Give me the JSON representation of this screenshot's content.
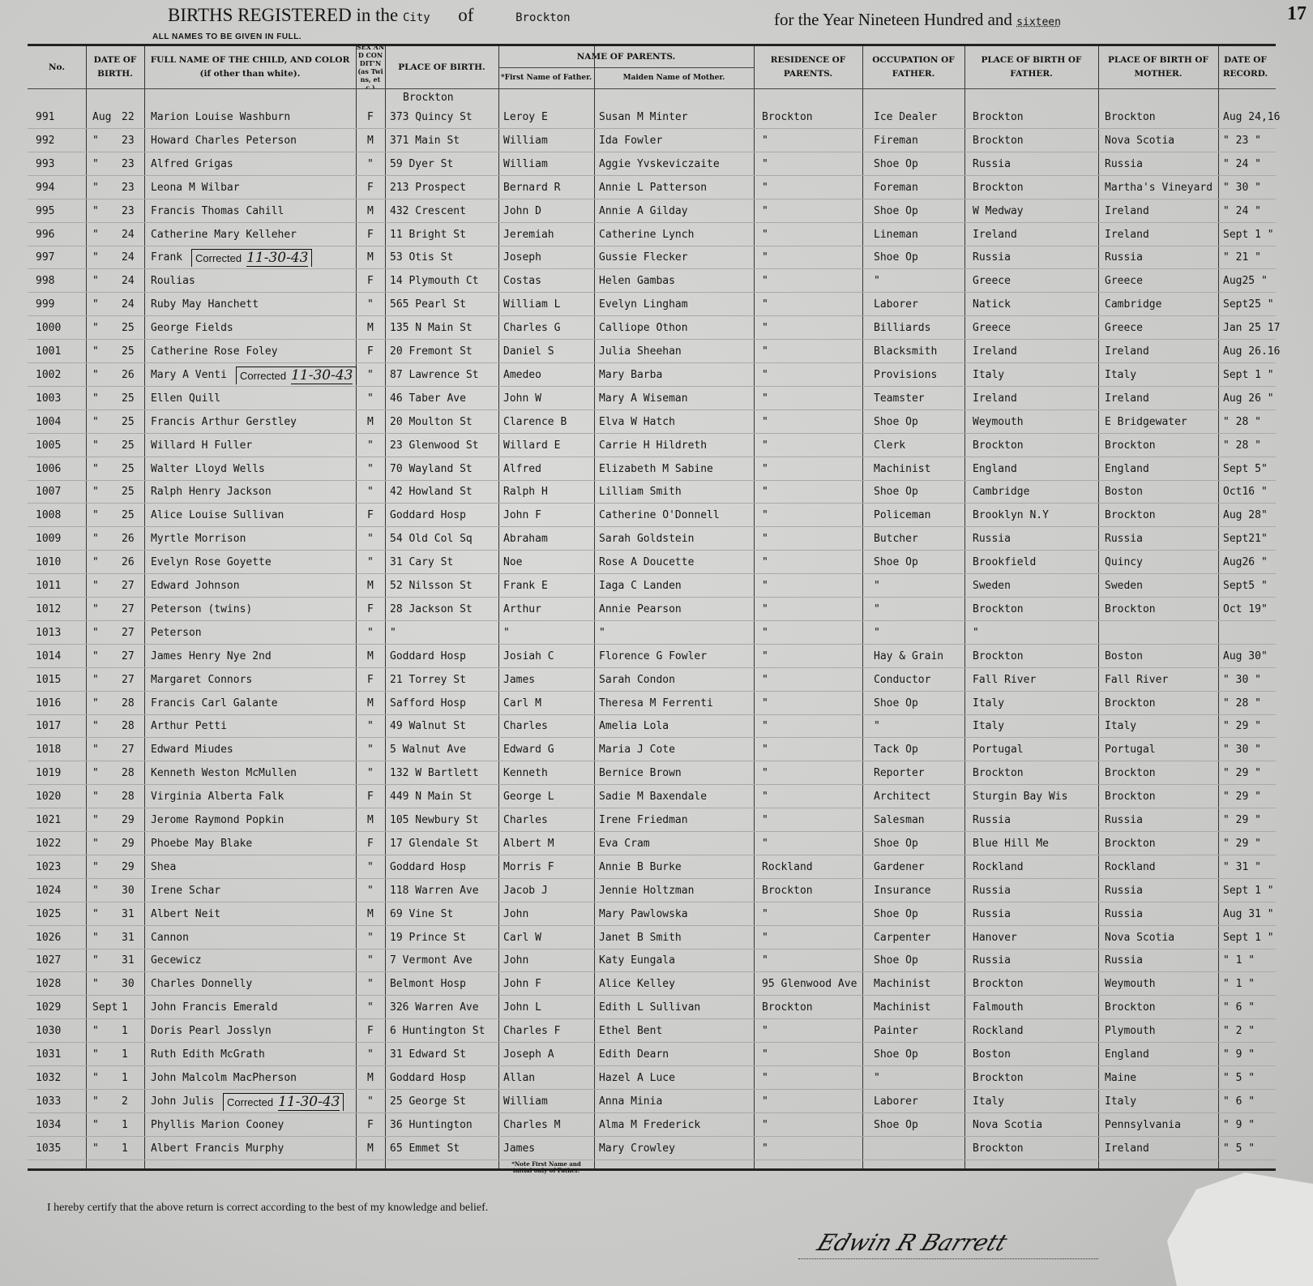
{
  "header": {
    "title": "BIRTHS REGISTERED",
    "in_the": "in the",
    "city_label": "City",
    "of": "of",
    "city": "Brockton",
    "subtitle": "ALL NAMES TO BE GIVEN IN FULL.",
    "year_prefix": "for the Year Nineteen Hundred and",
    "year": "sixteen",
    "page_number": "17"
  },
  "columns": [
    "No.",
    "DATE OF BIRTH.",
    "FULL NAME OF THE CHILD, AND COLOR (if other than white).",
    "SEX AND CONDIT'N (as Twins, etc.)",
    "PLACE OF BIRTH.",
    "*First Name of Father.",
    "Maiden Name of Mother.",
    "RESIDENCE OF PARENTS.",
    "OCCUPATION OF FATHER.",
    "PLACE OF BIRTH OF FATHER.",
    "PLACE OF BIRTH OF MOTHER.",
    "DATE OF RECORD."
  ],
  "parents_group": "NAME OF PARENTS.",
  "first_place_city": "Brockton",
  "rows": [
    [
      "991",
      "Aug",
      "22",
      "Marion Louise Washburn",
      "F",
      "373 Quincy St",
      "Leroy E",
      "Susan M Minter",
      "Brockton",
      "Ice Dealer",
      "Brockton",
      "Brockton",
      "Aug 24,16"
    ],
    [
      "992",
      "\"",
      "23",
      "Howard Charles Peterson",
      "M",
      "371 Main St",
      "William",
      "Ida Fowler",
      "\"",
      "Fireman",
      "Brockton",
      "Nova Scotia",
      "\" 23 \""
    ],
    [
      "993",
      "\"",
      "23",
      "Alfred Grigas",
      "\"",
      "59 Dyer St",
      "William",
      "Aggie Yvskeviczaite",
      "\"",
      "Shoe Op",
      "Russia",
      "Russia",
      "\" 24 \""
    ],
    [
      "994",
      "\"",
      "23",
      "Leona M Wilbar",
      "F",
      "213 Prospect",
      "Bernard R",
      "Annie L Patterson",
      "\"",
      "Foreman",
      "Brockton",
      "Martha's Vineyard",
      "\" 30 \""
    ],
    [
      "995",
      "\"",
      "23",
      "Francis Thomas Cahill",
      "M",
      "432 Crescent",
      "John D",
      "Annie A Gilday",
      "\"",
      "Shoe Op",
      "W Medway",
      "Ireland",
      "\" 24 \""
    ],
    [
      "996",
      "\"",
      "24",
      "Catherine Mary Kelleher",
      "F",
      "11 Bright St",
      "Jeremiah",
      "Catherine Lynch",
      "\"",
      "Lineman",
      "Ireland",
      "Ireland",
      "Sept 1 \""
    ],
    [
      "997",
      "\"",
      "24",
      "Frank",
      "M",
      "53 Otis St",
      "Joseph",
      "Gussie Flecker",
      "\"",
      "Shoe Op",
      "Russia",
      "Russia",
      "\" 21 \""
    ],
    [
      "998",
      "\"",
      "24",
      "Roulias",
      "F",
      "14 Plymouth Ct",
      "Costas",
      "Helen Gambas",
      "\"",
      "\"",
      "Greece",
      "Greece",
      "Aug25 \""
    ],
    [
      "999",
      "\"",
      "24",
      "Ruby May Hanchett",
      "\"",
      "565 Pearl St",
      "William L",
      "Evelyn Lingham",
      "\"",
      "Laborer",
      "Natick",
      "Cambridge",
      "Sept25 \""
    ],
    [
      "1000",
      "\"",
      "25",
      "George Fields",
      "M",
      "135 N Main St",
      "Charles G",
      "Calliope Othon",
      "\"",
      "Billiards",
      "Greece",
      "Greece",
      "Jan 25 17"
    ],
    [
      "1001",
      "\"",
      "25",
      "Catherine Rose Foley",
      "F",
      "20 Fremont St",
      "Daniel S",
      "Julia Sheehan",
      "\"",
      "Blacksmith",
      "Ireland",
      "Ireland",
      "Aug 26.16"
    ],
    [
      "1002",
      "\"",
      "26",
      "Mary A Venti",
      "\"",
      "87 Lawrence St",
      "Amedeo",
      "Mary Barba",
      "\"",
      "Provisions",
      "Italy",
      "Italy",
      "Sept 1 \""
    ],
    [
      "1003",
      "\"",
      "25",
      "Ellen Quill",
      "\"",
      "46 Taber Ave",
      "John W",
      "Mary A Wiseman",
      "\"",
      "Teamster",
      "Ireland",
      "Ireland",
      "Aug 26 \""
    ],
    [
      "1004",
      "\"",
      "25",
      "Francis Arthur Gerstley",
      "M",
      "20 Moulton St",
      "Clarence B",
      "Elva W Hatch",
      "\"",
      "Shoe Op",
      "Weymouth",
      "E Bridgewater",
      "\" 28 \""
    ],
    [
      "1005",
      "\"",
      "25",
      "Willard H Fuller",
      "\"",
      "23 Glenwood St",
      "Willard E",
      "Carrie H Hildreth",
      "\"",
      "Clerk",
      "Brockton",
      "Brockton",
      "\" 28 \""
    ],
    [
      "1006",
      "\"",
      "25",
      "Walter Lloyd Wells",
      "\"",
      "70 Wayland St",
      "Alfred",
      "Elizabeth M Sabine",
      "\"",
      "Machinist",
      "England",
      "England",
      "Sept 5\""
    ],
    [
      "1007",
      "\"",
      "25",
      "Ralph Henry Jackson",
      "\"",
      "42 Howland St",
      "Ralph H",
      "Lilliam Smith",
      "\"",
      "Shoe Op",
      "Cambridge",
      "Boston",
      "Oct16 \""
    ],
    [
      "1008",
      "\"",
      "25",
      "Alice Louise Sullivan",
      "F",
      "Goddard Hosp",
      "John F",
      "Catherine O'Donnell",
      "\"",
      "Policeman",
      "Brooklyn N.Y",
      "Brockton",
      "Aug 28\""
    ],
    [
      "1009",
      "\"",
      "26",
      "Myrtle Morrison",
      "\"",
      "54 Old Col Sq",
      "Abraham",
      "Sarah Goldstein",
      "\"",
      "Butcher",
      "Russia",
      "Russia",
      "Sept21\""
    ],
    [
      "1010",
      "\"",
      "26",
      "Evelyn Rose Goyette",
      "\"",
      "31 Cary St",
      "Noe",
      "Rose A Doucette",
      "\"",
      "Shoe Op",
      "Brookfield",
      "Quincy",
      "Aug26 \""
    ],
    [
      "1011",
      "\"",
      "27",
      "Edward Johnson",
      "M",
      "52 Nilsson St",
      "Frank E",
      "Iaga C Landen",
      "\"",
      "\"",
      "Sweden",
      "Sweden",
      "Sept5 \""
    ],
    [
      "1012",
      "\"",
      "27",
      "Peterson        (twins)",
      "F",
      "28 Jackson St",
      "Arthur",
      "Annie Pearson",
      "\"",
      "\"",
      "Brockton",
      "Brockton",
      "Oct 19\""
    ],
    [
      "1013",
      "\"",
      "27",
      "Peterson",
      "\"",
      "\"",
      "\"",
      "\"",
      "\"",
      "\"",
      "\"",
      "",
      ""
    ],
    [
      "1014",
      "\"",
      "27",
      "James Henry Nye 2nd",
      "M",
      "Goddard Hosp",
      "Josiah C",
      "Florence G Fowler",
      "\"",
      "Hay & Grain",
      "Brockton",
      "Boston",
      "Aug 30\""
    ],
    [
      "1015",
      "\"",
      "27",
      "Margaret Connors",
      "F",
      "21 Torrey St",
      "James",
      "Sarah Condon",
      "\"",
      "Conductor",
      "Fall River",
      "Fall River",
      "\" 30 \""
    ],
    [
      "1016",
      "\"",
      "28",
      "Francis Carl Galante",
      "M",
      "Safford Hosp",
      "Carl M",
      "Theresa M Ferrenti",
      "\"",
      "Shoe Op",
      "Italy",
      "Brockton",
      "\" 28 \""
    ],
    [
      "1017",
      "\"",
      "28",
      "Arthur Petti",
      "\"",
      "49 Walnut St",
      "Charles",
      "Amelia Lola",
      "\"",
      "\"",
      "Italy",
      "Italy",
      "\" 29 \""
    ],
    [
      "1018",
      "\"",
      "27",
      "Edward Miudes",
      "\"",
      "5 Walnut Ave",
      "Edward G",
      "Maria J Cote",
      "\"",
      "Tack Op",
      "Portugal",
      "Portugal",
      "\" 30 \""
    ],
    [
      "1019",
      "\"",
      "28",
      "Kenneth Weston McMullen",
      "\"",
      "132 W Bartlett",
      "Kenneth",
      "Bernice Brown",
      "\"",
      "Reporter",
      "Brockton",
      "Brockton",
      "\" 29 \""
    ],
    [
      "1020",
      "\"",
      "28",
      "Virginia Alberta Falk",
      "F",
      "449 N Main St",
      "George L",
      "Sadie M Baxendale",
      "\"",
      "Architect",
      "Sturgin Bay Wis",
      "Brockton",
      "\" 29 \""
    ],
    [
      "1021",
      "\"",
      "29",
      "Jerome Raymond Popkin",
      "M",
      "105 Newbury St",
      "Charles",
      "Irene Friedman",
      "\"",
      "Salesman",
      "Russia",
      "Russia",
      "\" 29 \""
    ],
    [
      "1022",
      "\"",
      "29",
      "Phoebe May Blake",
      "F",
      "17 Glendale St",
      "Albert M",
      "Eva Cram",
      "\"",
      "Shoe Op",
      "Blue Hill Me",
      "Brockton",
      "\" 29 \""
    ],
    [
      "1023",
      "\"",
      "29",
      "Shea",
      "\"",
      "Goddard Hosp",
      "Morris F",
      "Annie B Burke",
      "Rockland",
      "Gardener",
      "Rockland",
      "Rockland",
      "\" 31 \""
    ],
    [
      "1024",
      "\"",
      "30",
      "Irene Schar",
      "\"",
      "118 Warren Ave",
      "Jacob J",
      "Jennie Holtzman",
      "Brockton",
      "Insurance",
      "Russia",
      "Russia",
      "Sept 1 \""
    ],
    [
      "1025",
      "\"",
      "31",
      "Albert Neit",
      "M",
      "69 Vine St",
      "John",
      "Mary Pawlowska",
      "\"",
      "Shoe Op",
      "Russia",
      "Russia",
      "Aug 31 \""
    ],
    [
      "1026",
      "\"",
      "31",
      "Cannon",
      "\"",
      "19 Prince St",
      "Carl W",
      "Janet B Smith",
      "\"",
      "Carpenter",
      "Hanover",
      "Nova Scotia",
      "Sept 1 \""
    ],
    [
      "1027",
      "\"",
      "31",
      "Gecewicz",
      "\"",
      "7 Vermont Ave",
      "John",
      "Katy Eungala",
      "\"",
      "Shoe Op",
      "Russia",
      "Russia",
      "\" 1 \""
    ],
    [
      "1028",
      "\"",
      "30",
      "Charles Donnelly",
      "\"",
      "Belmont Hosp",
      "John F",
      "Alice Kelley",
      "95 Glenwood Ave",
      "Machinist",
      "Brockton",
      "Weymouth",
      "\" 1 \""
    ],
    [
      "1029",
      "Sept",
      "1",
      "John Francis Emerald",
      "\"",
      "326 Warren Ave",
      "John L",
      "Edith L Sullivan",
      "Brockton",
      "Machinist",
      "Falmouth",
      "Brockton",
      "\" 6 \""
    ],
    [
      "1030",
      "\"",
      "1",
      "Doris Pearl Josslyn",
      "F",
      "6 Huntington St",
      "Charles F",
      "Ethel Bent",
      "\"",
      "Painter",
      "Rockland",
      "Plymouth",
      "\" 2 \""
    ],
    [
      "1031",
      "\"",
      "1",
      "Ruth Edith McGrath",
      "\"",
      "31 Edward St",
      "Joseph A",
      "Edith Dearn",
      "\"",
      "Shoe Op",
      "Boston",
      "England",
      "\" 9 \""
    ],
    [
      "1032",
      "\"",
      "1",
      "John Malcolm MacPherson",
      "M",
      "Goddard Hosp",
      "Allan",
      "Hazel A Luce",
      "\"",
      "\"",
      "Brockton",
      "Maine",
      "\" 5 \""
    ],
    [
      "1033",
      "\"",
      "2",
      "John Julis",
      "\"",
      "25 George St",
      "William",
      "Anna Minia",
      "\"",
      "Laborer",
      "Italy",
      "Italy",
      "\" 6 \""
    ],
    [
      "1034",
      "\"",
      "1",
      "Phyllis Marion Cooney",
      "F",
      "36 Huntington",
      "Charles M",
      "Alma M Frederick",
      "\"",
      "Shoe Op",
      "Nova Scotia",
      "Pennsylvania",
      "\" 9 \""
    ],
    [
      "1035",
      "\"",
      "1",
      "Albert Francis Murphy",
      "M",
      "65 Emmet St",
      "James",
      "Mary Crowley",
      "\"",
      "",
      "Brockton",
      "Ireland",
      "\" 5 \""
    ]
  ],
  "stamps": [
    {
      "row": 6,
      "label": "Corrected",
      "date": "11-30-43"
    },
    {
      "row": 11,
      "label": "Corrected",
      "date": "11-30-43"
    },
    {
      "row": 42,
      "label": "Corrected",
      "date": "11-30-43"
    }
  ],
  "footnote": "*Note First Name and initial only of Father.",
  "certification": "I hereby certify that the above return is correct according to the best of my knowledge and belief.",
  "signature": "Edwin R Barrett"
}
